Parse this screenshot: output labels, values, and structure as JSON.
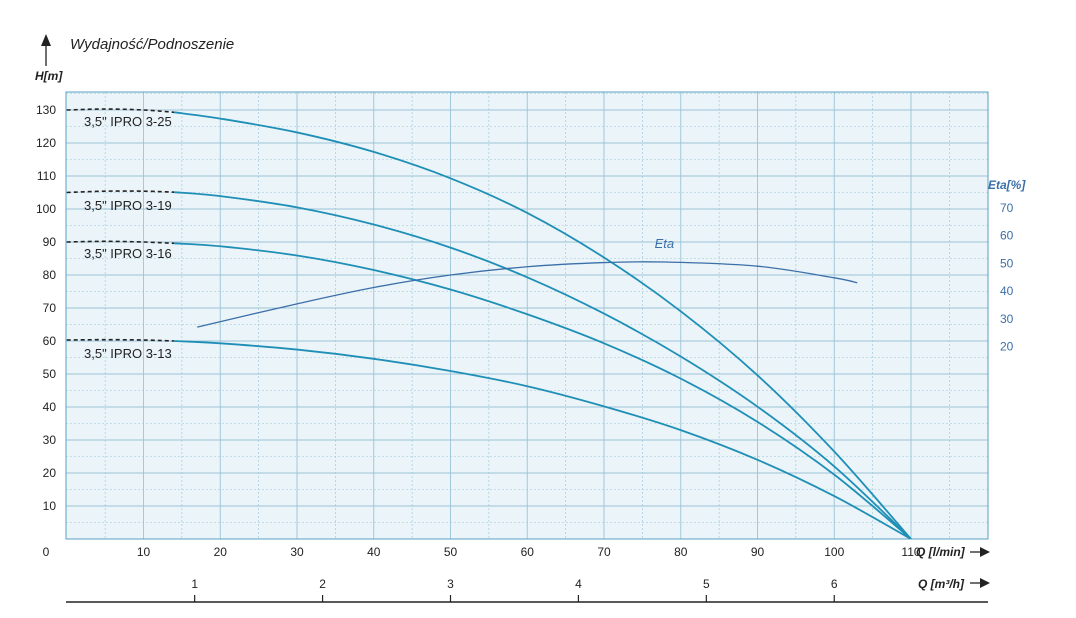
{
  "title": "Wydajność/Podnoszenie",
  "colors": {
    "plot_bg": "#eaf4f9",
    "grid": "#9cc3d8",
    "curve": "#1f8fb6",
    "eta": "#3b6fa8",
    "frame": "#5aa0c3"
  },
  "chart_data": {
    "type": "line",
    "ylabel": "H[m]",
    "xlabel": "Q [l/min]",
    "x2label": "Q [m³/h]",
    "y2label": "Eta[%]",
    "xlim": [
      0,
      113
    ],
    "ylim": [
      0,
      135
    ],
    "y2lim": [
      0,
      95
    ],
    "grid": true,
    "x_ticks": [
      0,
      10,
      20,
      30,
      40,
      50,
      60,
      70,
      80,
      90,
      100,
      110
    ],
    "x2_ticks": [
      1,
      2,
      3,
      4,
      5,
      6
    ],
    "y_ticks": [
      10,
      20,
      30,
      40,
      50,
      60,
      70,
      80,
      90,
      100,
      110,
      120,
      130
    ],
    "y2_ticks": [
      20,
      30,
      40,
      50,
      60,
      70
    ],
    "series": [
      {
        "name": "3,5\" IPRO 3-25",
        "dashed": [
          [
            0,
            130
          ],
          [
            5,
            130.3
          ],
          [
            10,
            130
          ],
          [
            14,
            129.3
          ]
        ],
        "x": [
          14,
          20,
          30,
          40,
          50,
          60,
          70,
          80,
          90,
          100,
          110
        ],
        "y": [
          129.3,
          127.4,
          123.2,
          117.3,
          109.3,
          98.8,
          85.3,
          69,
          49.6,
          26.5,
          0
        ]
      },
      {
        "name": "3,5\" IPRO 3-19",
        "dashed": [
          [
            0,
            105
          ],
          [
            5,
            105.4
          ],
          [
            10,
            105.4
          ],
          [
            14,
            105.1
          ]
        ],
        "x": [
          14,
          20,
          30,
          40,
          50,
          60,
          70,
          80,
          90,
          100,
          110
        ],
        "y": [
          105.1,
          103.9,
          100.5,
          95.3,
          88.3,
          79.3,
          68.3,
          55.3,
          40.1,
          22,
          0
        ]
      },
      {
        "name": "3,5\" IPRO 3-16",
        "dashed": [
          [
            0,
            90
          ],
          [
            5,
            90.2
          ],
          [
            10,
            90
          ],
          [
            14,
            89.6
          ]
        ],
        "x": [
          14,
          20,
          30,
          40,
          50,
          60,
          70,
          80,
          90,
          100,
          110
        ],
        "y": [
          89.6,
          88.7,
          85.9,
          81.5,
          75.6,
          68.1,
          59.3,
          48.6,
          35.5,
          19.5,
          0
        ]
      },
      {
        "name": "3,5\" IPRO 3-13",
        "dashed": [
          [
            0,
            60.3
          ],
          [
            5,
            60.4
          ],
          [
            10,
            60.3
          ],
          [
            14,
            60
          ]
        ],
        "x": [
          14,
          20,
          30,
          40,
          50,
          60,
          70,
          80,
          90,
          100,
          110
        ],
        "y": [
          60,
          59.3,
          57.4,
          54.6,
          50.9,
          46.3,
          40.2,
          33,
          24,
          13,
          0
        ]
      }
    ],
    "eta_series": {
      "name": "Eta",
      "x": [
        17,
        30,
        40,
        50,
        60,
        70,
        78,
        90,
        100,
        103
      ],
      "y": [
        27,
        35.4,
        41.3,
        45.8,
        48.8,
        50.3,
        50.5,
        49,
        44.8,
        43
      ]
    }
  }
}
